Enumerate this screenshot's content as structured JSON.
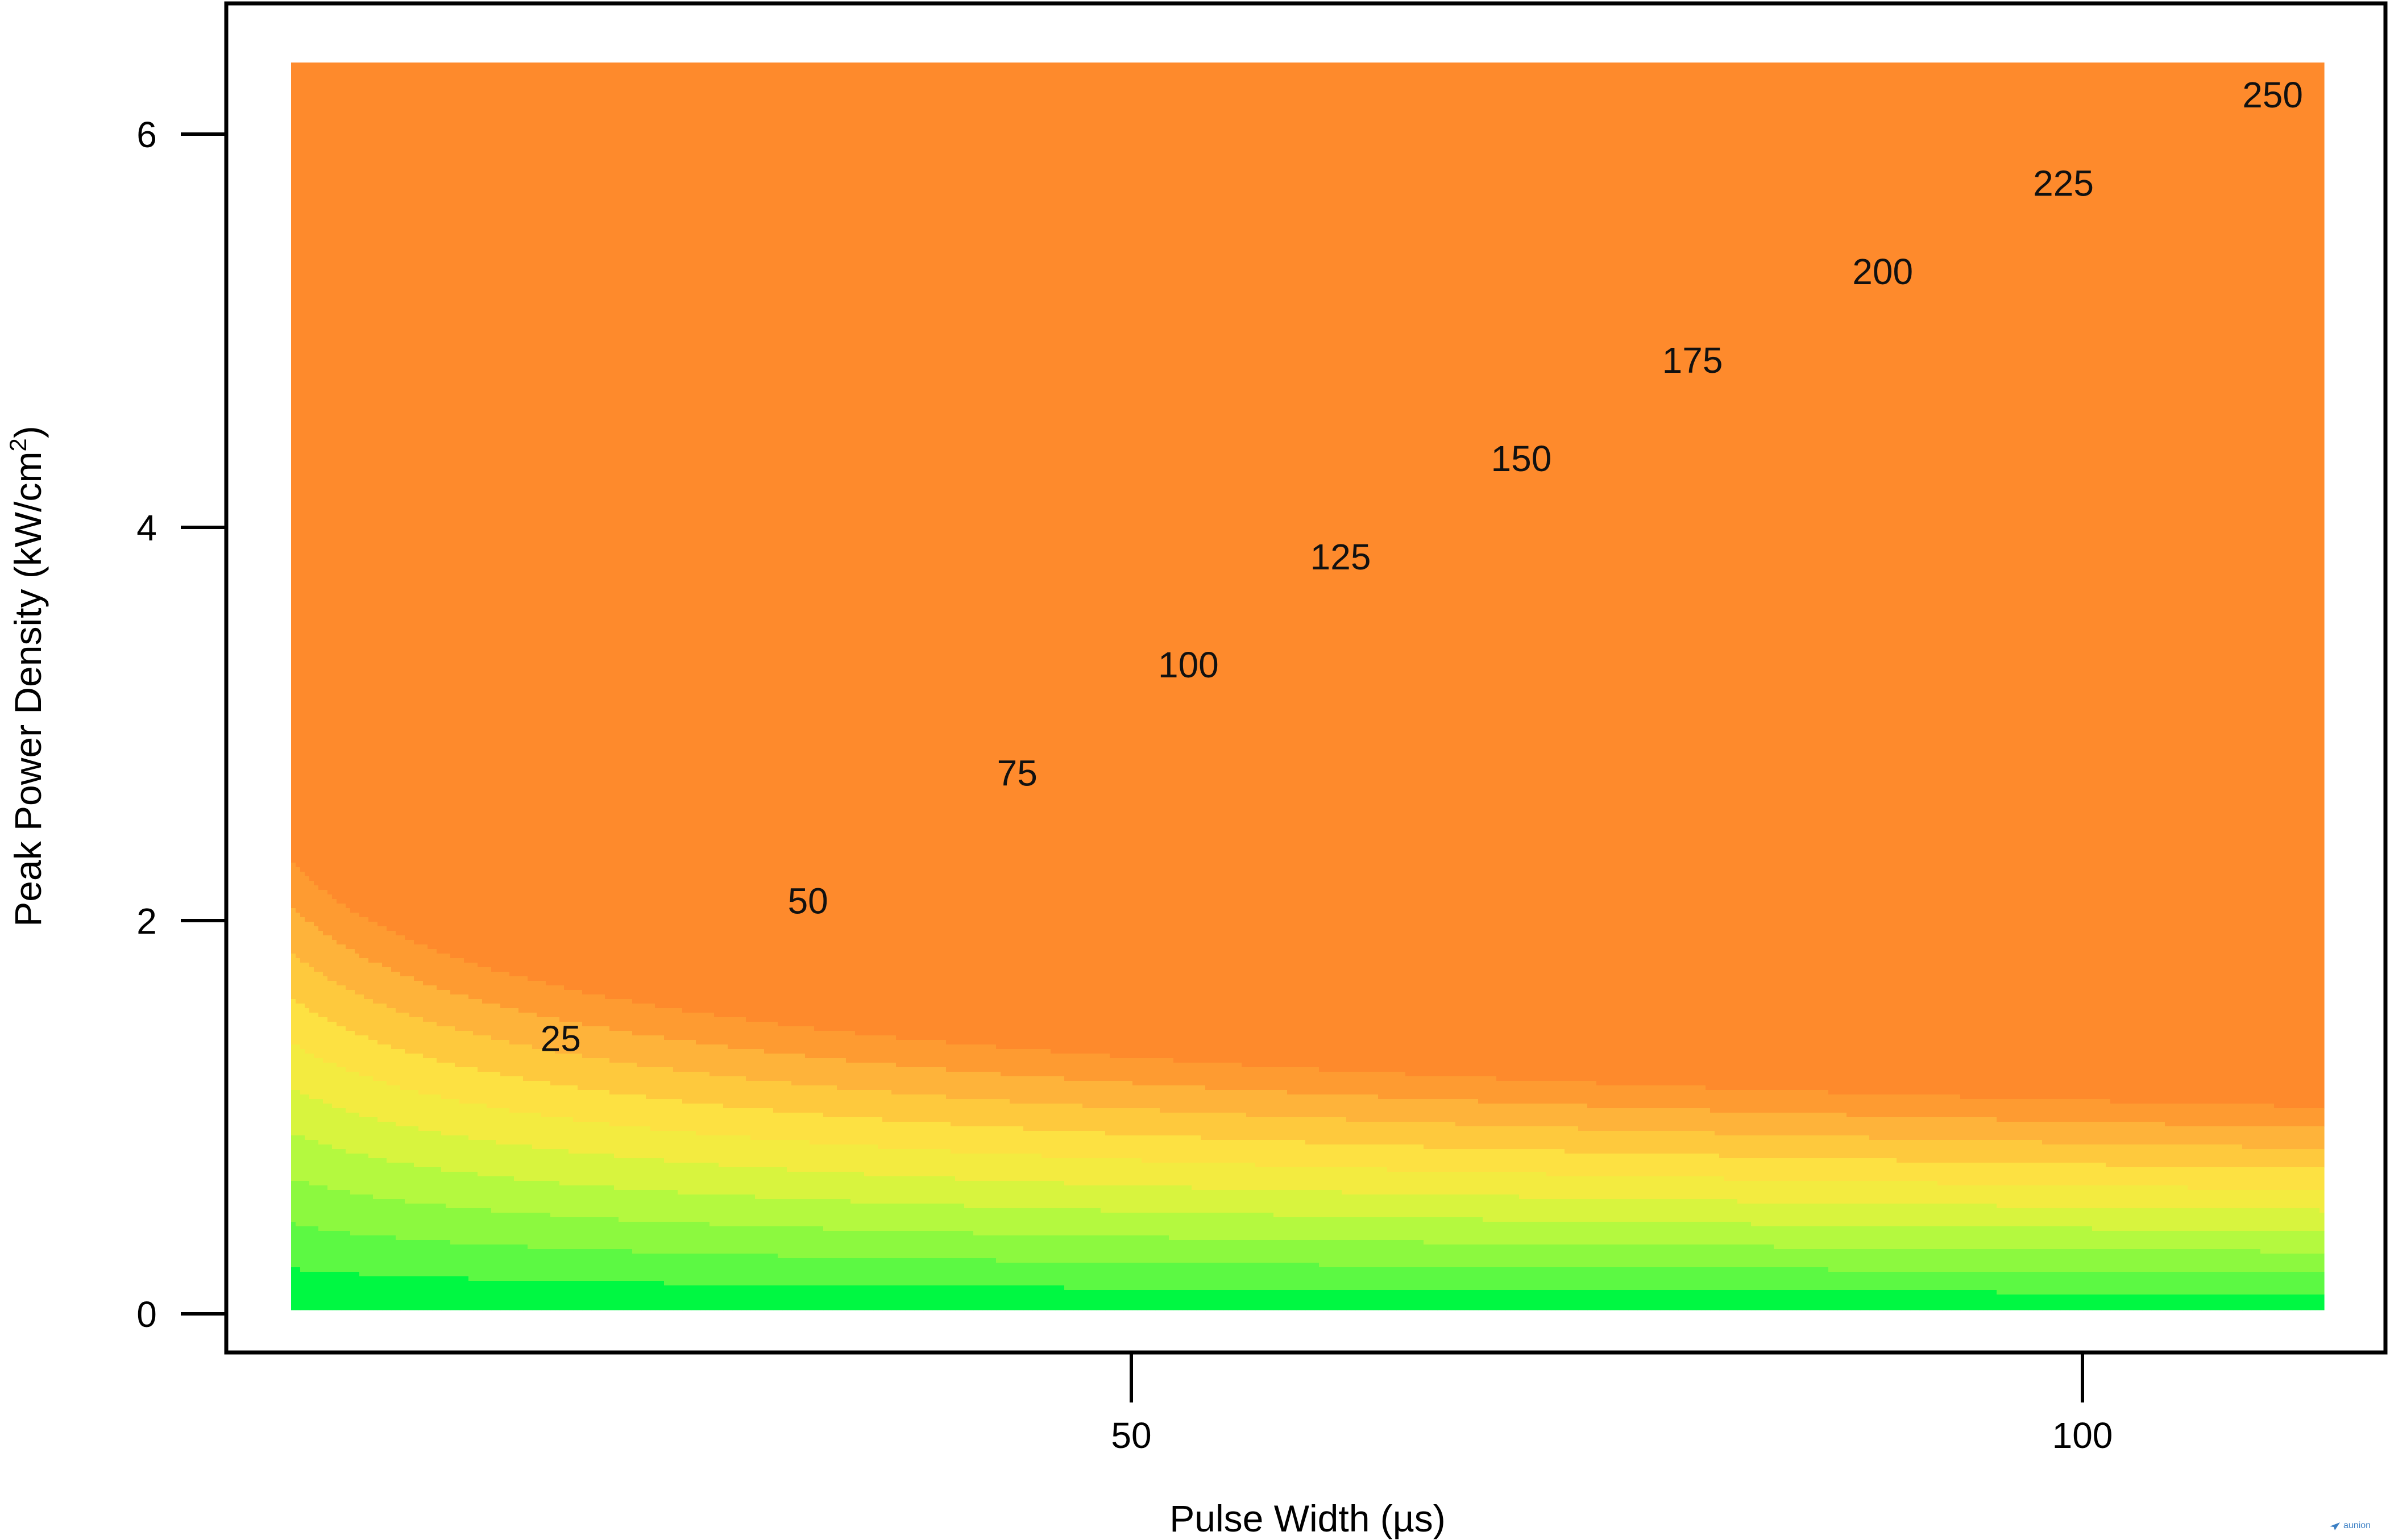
{
  "chart_data": {
    "type": "heatmap",
    "subtype": "filled-contour",
    "title": "",
    "xlabel": "Pulse Width (µs)",
    "ylabel": "Peak Power Density (kW/cm",
    "ylabel_superscript": "2",
    "ylabel_suffix": ")",
    "xlim": [
      3,
      115
    ],
    "ylim": [
      0,
      6.35
    ],
    "x_ticks": [
      50,
      100
    ],
    "x_tick_labels": [
      "50",
      "100"
    ],
    "y_ticks": [
      0,
      2,
      4,
      6
    ],
    "y_tick_labels": [
      "0",
      "2",
      "4",
      "6"
    ],
    "grid": false,
    "legend": "none",
    "surface": "z ≈ 68 · y · x^0.265",
    "surface_coefficient": 68,
    "surface_exponent": 0.265,
    "contour_levels": [
      25,
      50,
      75,
      100,
      125,
      150,
      175,
      200,
      225,
      250
    ],
    "contour_labels": [
      {
        "text": "25",
        "x": 20,
        "y": 1.4
      },
      {
        "text": "50",
        "x": 33,
        "y": 2.1
      },
      {
        "text": "75",
        "x": 44,
        "y": 2.75
      },
      {
        "text": "100",
        "x": 53,
        "y": 3.3
      },
      {
        "text": "125",
        "x": 61,
        "y": 3.85
      },
      {
        "text": "150",
        "x": 70.5,
        "y": 4.35
      },
      {
        "text": "175",
        "x": 79.5,
        "y": 4.85
      },
      {
        "text": "200",
        "x": 89.5,
        "y": 5.3
      },
      {
        "text": "225",
        "x": 99,
        "y": 5.75
      },
      {
        "text": "250",
        "x": 110,
        "y": 6.2
      }
    ],
    "band_colors": [
      "#00f842",
      "#5cf943",
      "#8cf93f",
      "#b4f93f",
      "#d8f43e",
      "#f3eb40",
      "#fde142",
      "#fec93d",
      "#feb33a",
      "#fe9b31",
      "#fe8a2c"
    ]
  },
  "watermark": "aunion"
}
